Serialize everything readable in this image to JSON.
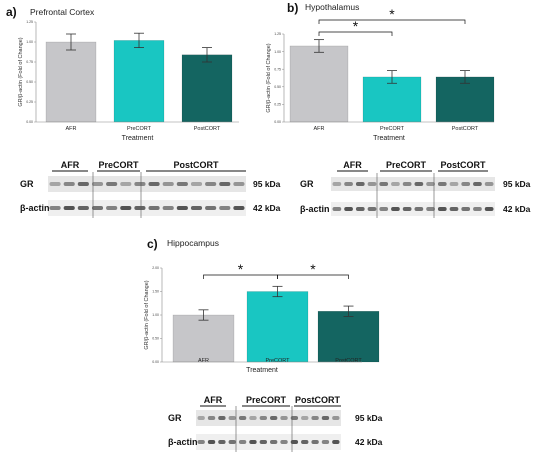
{
  "colors": {
    "AFR": "#c6c6c9",
    "PreCORT": "#19c6c2",
    "PostCORT": "#146561"
  },
  "chart_data": [
    {
      "type": "bar",
      "panel_letter": "a)",
      "title": "Prefrontal Cortex",
      "xlabel": "Treatment",
      "ylabel": "GR/β-actin (Fold of Change)",
      "categories": [
        "AFR",
        "PreCORT",
        "PostCORT"
      ],
      "values": [
        1.0,
        1.02,
        0.84
      ],
      "errors": [
        0.1,
        0.09,
        0.09
      ],
      "ylim": [
        0,
        1.25
      ],
      "yticks": [
        "0.00",
        "0.25",
        "0.50",
        "0.75",
        "1.00",
        "1.25"
      ],
      "significance": [],
      "blot": {
        "groups": [
          "AFR",
          "PreCORT",
          "PostCORT"
        ],
        "rows": [
          "GR",
          "β-actin"
        ],
        "sizes": [
          "95 kDa",
          "42 kDa"
        ]
      }
    },
    {
      "type": "bar",
      "panel_letter": "b)",
      "title": "Hypothalamus",
      "xlabel": "Treatment",
      "ylabel": "GR/β-actin (Fold of Change)",
      "categories": [
        "AFR",
        "PreCORT",
        "PostCORT"
      ],
      "values": [
        1.08,
        0.64,
        0.64
      ],
      "errors": [
        0.09,
        0.09,
        0.09
      ],
      "ylim": [
        0,
        1.25
      ],
      "yticks": [
        "0.00",
        "0.25",
        "0.50",
        "0.75",
        "1.00",
        "1.25"
      ],
      "significance": [
        {
          "from": 0,
          "to": 1,
          "label": "*"
        },
        {
          "from": 0,
          "to": 2,
          "label": "*"
        }
      ],
      "blot": {
        "groups": [
          "AFR",
          "PreCORT",
          "PostCORT"
        ],
        "rows": [
          "GR",
          "β-actin"
        ],
        "sizes": [
          "95 kDa",
          "42 kDa"
        ]
      }
    },
    {
      "type": "bar",
      "panel_letter": "c)",
      "title": "Hippocampus",
      "xlabel": "Treatment",
      "ylabel": "GR/β-actin (Fold of Change)",
      "categories": [
        "AFR",
        "PreCORT",
        "PostCORT"
      ],
      "values": [
        1.0,
        1.5,
        1.08
      ],
      "errors": [
        0.11,
        0.11,
        0.11
      ],
      "ylim": [
        0,
        2.0
      ],
      "yticks": [
        "0.00",
        "0.50",
        "1.00",
        "1.50",
        "2.00"
      ],
      "significance": [
        {
          "from": 0,
          "to": 1,
          "label": "*"
        },
        {
          "from": 1,
          "to": 2,
          "label": "*"
        }
      ],
      "blot": {
        "groups": [
          "AFR",
          "PreCORT",
          "PostCORT"
        ],
        "rows": [
          "GR",
          "β-actin"
        ],
        "sizes": [
          "95 kDa",
          "42 kDa"
        ]
      }
    }
  ]
}
